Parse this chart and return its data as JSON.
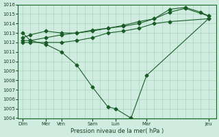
{
  "xlabel": "Pression niveau de la mer( hPa )",
  "ylim": [
    1004,
    1016
  ],
  "yticks": [
    1004,
    1005,
    1006,
    1007,
    1008,
    1009,
    1010,
    1011,
    1012,
    1013,
    1014,
    1015,
    1016
  ],
  "bg_color": "#d0ece0",
  "grid_color": "#a8d4bc",
  "line_color": "#1a5c28",
  "series": [
    {
      "x": [
        0,
        0.5,
        1.5,
        2.5,
        3.5,
        4.5,
        5.5,
        6.0,
        7.0,
        8.0,
        12.0
      ],
      "y": [
        1013.0,
        1012.2,
        1011.8,
        1011.0,
        1009.6,
        1007.3,
        1005.2,
        1005.0,
        1004.0,
        1008.5,
        1014.5
      ]
    },
    {
      "x": [
        0,
        0.5,
        1.5,
        2.5,
        3.5,
        4.5,
        5.5,
        6.5,
        7.5,
        8.5,
        9.5,
        12.0
      ],
      "y": [
        1012.0,
        1012.0,
        1012.0,
        1012.0,
        1012.2,
        1012.5,
        1013.0,
        1013.2,
        1013.5,
        1014.0,
        1014.2,
        1014.5
      ]
    },
    {
      "x": [
        0,
        0.5,
        1.5,
        2.5,
        3.5,
        4.5,
        5.5,
        6.5,
        7.5,
        8.5,
        9.5,
        10.5,
        12.0
      ],
      "y": [
        1012.2,
        1012.2,
        1012.5,
        1012.8,
        1013.0,
        1013.2,
        1013.5,
        1013.7,
        1014.0,
        1014.5,
        1015.2,
        1015.6,
        1014.8
      ]
    },
    {
      "x": [
        0,
        0.5,
        1.5,
        2.5,
        3.5,
        4.5,
        5.5,
        6.5,
        7.5,
        8.5,
        9.5,
        10.5,
        11.5,
        12.0
      ],
      "y": [
        1012.5,
        1012.8,
        1013.2,
        1013.0,
        1013.0,
        1013.3,
        1013.5,
        1013.8,
        1014.2,
        1014.5,
        1015.5,
        1015.7,
        1015.2,
        1014.8
      ]
    }
  ],
  "xlim": [
    -0.3,
    12.5
  ],
  "major_xtick_pos": [
    0,
    1.5,
    2.5,
    4.5,
    6.0,
    8.0,
    12.0
  ],
  "major_xtick_labels": [
    "Dim",
    "Mer",
    "Ven",
    "Sam",
    "Lun",
    "Mar",
    "Jeu"
  ],
  "figsize": [
    3.2,
    2.0
  ],
  "dpi": 100
}
